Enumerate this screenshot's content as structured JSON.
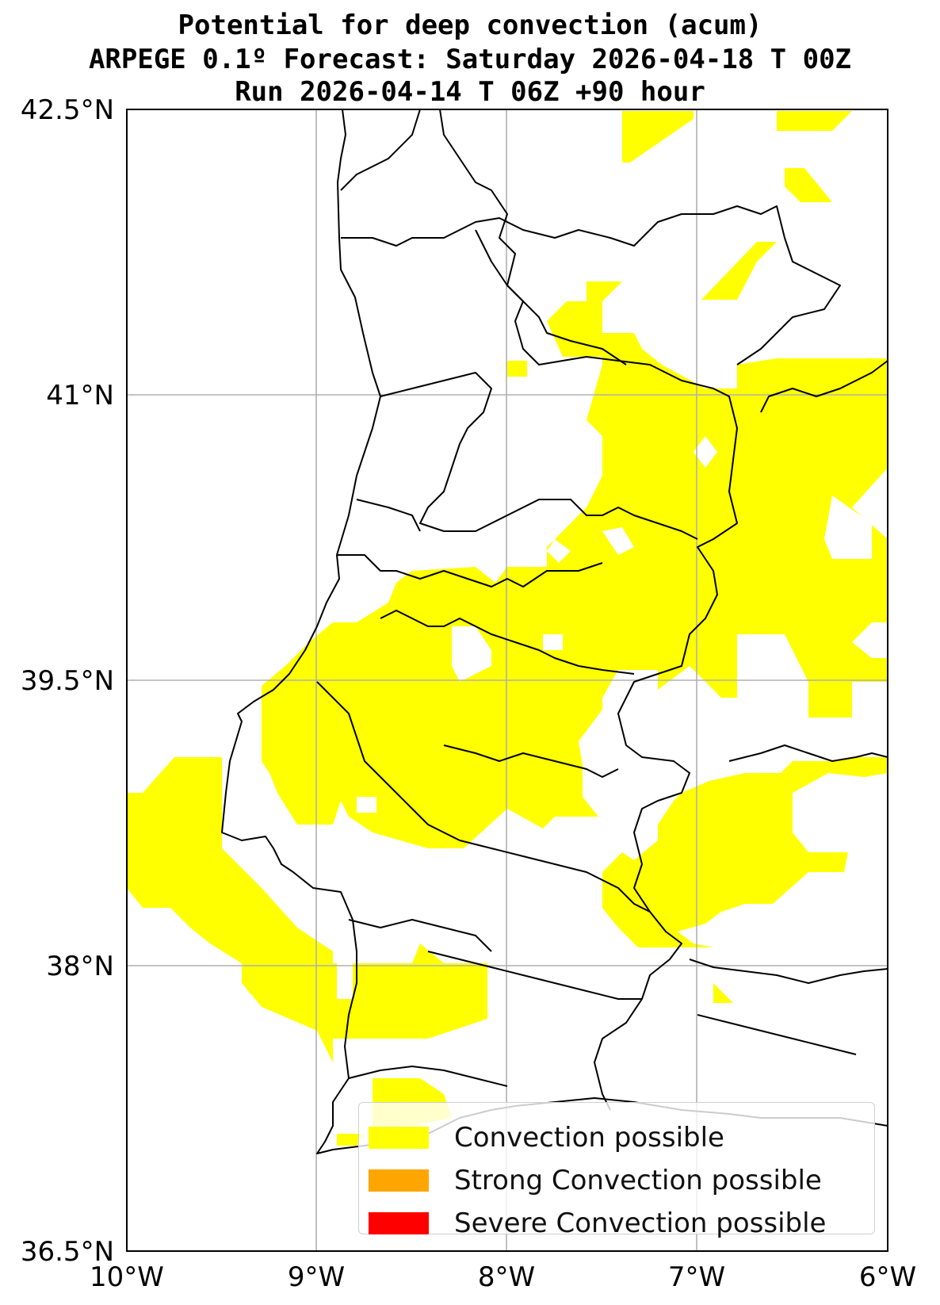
{
  "titles": {
    "line1": "Potential for deep convection (acum)",
    "line2": "ARPEGE 0.1º Forecast: Saturday 2026-04-18 T 00Z",
    "line3": "Run 2026-04-14 T 06Z +90 hour"
  },
  "map": {
    "extent": {
      "lon": [
        -10,
        -6
      ],
      "lat": [
        36.5,
        42.5
      ]
    },
    "lat_ticks": [
      "42.5°N",
      "41°N",
      "39.5°N",
      "38°N",
      "36.5°N"
    ],
    "lon_ticks": [
      "10°W",
      "9°W",
      "8°W",
      "7°W",
      "6°W"
    ],
    "grid": true,
    "colors": {
      "convection_possible": "#ffff00",
      "strong_convection_possible": "#ffa500",
      "severe_convection_possible": "#ff0000",
      "gridline": "#b0b0b0",
      "border": "#000000"
    }
  },
  "legend": {
    "placement": "lower-right",
    "items": [
      {
        "label": "Convection possible",
        "color": "#ffff00"
      },
      {
        "label": "Strong Convection possible",
        "color": "#ffa500"
      },
      {
        "label": "Severe Convection possible",
        "color": "#ff0000"
      }
    ]
  }
}
